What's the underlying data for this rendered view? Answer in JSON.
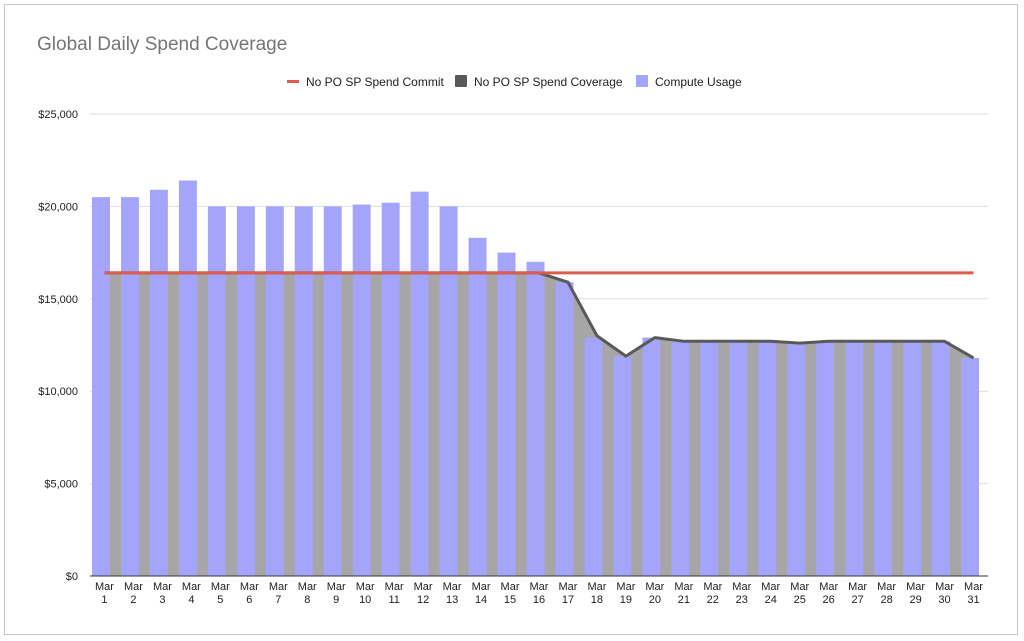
{
  "chart_data": {
    "type": "bar",
    "title": "Global Daily Spend Coverage",
    "xlabel": "",
    "ylabel": "",
    "ylim": [
      0,
      25000
    ],
    "y_ticks": [
      "$0",
      "$5,000",
      "$10,000",
      "$15,000",
      "$20,000",
      "$25,000"
    ],
    "y_tick_values": [
      0,
      5000,
      10000,
      15000,
      20000,
      25000
    ],
    "grid": true,
    "legend_position": "top",
    "categories": [
      "Mar 1",
      "Mar 2",
      "Mar 3",
      "Mar 4",
      "Mar 5",
      "Mar 6",
      "Mar 7",
      "Mar 8",
      "Mar 9",
      "Mar 10",
      "Mar 11",
      "Mar 12",
      "Mar 13",
      "Mar 14",
      "Mar 15",
      "Mar 16",
      "Mar 17",
      "Mar 18",
      "Mar 19",
      "Mar 20",
      "Mar 21",
      "Mar 22",
      "Mar 23",
      "Mar 24",
      "Mar 25",
      "Mar 26",
      "Mar 27",
      "Mar 28",
      "Mar 29",
      "Mar 30",
      "Mar 31"
    ],
    "series": [
      {
        "name": "No PO SP Spend Commit",
        "kind": "line",
        "color": "#dd5c4e",
        "values": [
          16400,
          16400,
          16400,
          16400,
          16400,
          16400,
          16400,
          16400,
          16400,
          16400,
          16400,
          16400,
          16400,
          16400,
          16400,
          16400,
          16400,
          16400,
          16400,
          16400,
          16400,
          16400,
          16400,
          16400,
          16400,
          16400,
          16400,
          16400,
          16400,
          16400,
          16400
        ]
      },
      {
        "name": "No PO SP Spend Coverage",
        "kind": "area-line",
        "color": "#595959",
        "values": [
          16400,
          16400,
          16400,
          16400,
          16400,
          16400,
          16400,
          16400,
          16400,
          16400,
          16400,
          16400,
          16400,
          16400,
          16400,
          16400,
          15900,
          13000,
          11900,
          12900,
          12700,
          12700,
          12700,
          12700,
          12600,
          12700,
          12700,
          12700,
          12700,
          12700,
          11800
        ]
      },
      {
        "name": "Compute Usage",
        "kind": "bar",
        "color": "#a4a4fb",
        "values": [
          20500,
          20500,
          20900,
          21400,
          20000,
          20000,
          20000,
          20000,
          20000,
          20100,
          20200,
          20800,
          20000,
          18300,
          17500,
          17000,
          15900,
          12900,
          11900,
          12900,
          12700,
          12700,
          12700,
          12700,
          12600,
          12700,
          12700,
          12700,
          12700,
          12700,
          11800
        ]
      }
    ]
  }
}
